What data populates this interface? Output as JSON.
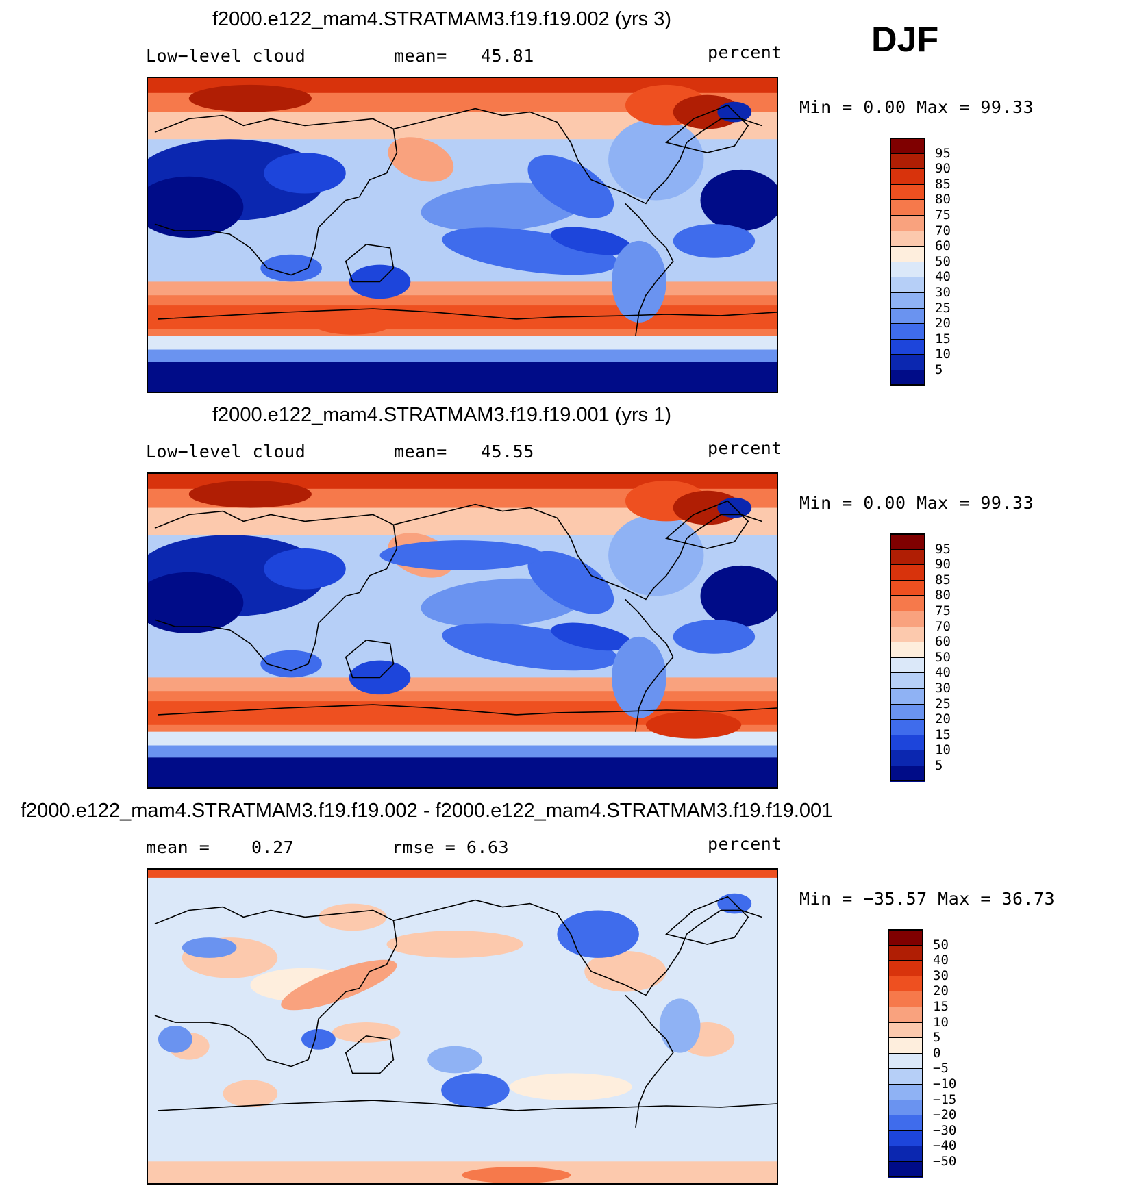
{
  "season": "DJF",
  "panels": [
    {
      "title": "f2000.e122_mam4.STRATMAM3.f19.f19.002 (yrs 3)",
      "left_label": "Low−level cloud",
      "mean_label": "mean=",
      "mean_value": "45.81",
      "units": "percent",
      "minmax": "Min =    0.00 Max =   99.33",
      "colorbar_labels": [
        "95",
        "90",
        "85",
        "80",
        "75",
        "70",
        "60",
        "50",
        "40",
        "30",
        "25",
        "20",
        "15",
        "10",
        "5"
      ]
    },
    {
      "title": "f2000.e122_mam4.STRATMAM3.f19.f19.001 (yrs 1)",
      "left_label": "Low−level cloud",
      "mean_label": "mean=",
      "mean_value": "45.55",
      "units": "percent",
      "minmax": "Min =    0.00 Max =   99.33",
      "colorbar_labels": [
        "95",
        "90",
        "85",
        "80",
        "75",
        "70",
        "60",
        "50",
        "40",
        "30",
        "25",
        "20",
        "15",
        "10",
        "5"
      ]
    },
    {
      "title": "f2000.e122_mam4.STRATMAM3.f19.f19.002 - f2000.e122_mam4.STRATMAM3.f19.f19.001",
      "left_label": "mean =",
      "mean_label": "0.27",
      "mean_value": "rmse =     6.63",
      "units": "percent",
      "minmax": "Min = −35.57 Max =   36.73",
      "colorbar_labels": [
        "50",
        "40",
        "30",
        "20",
        "15",
        "10",
        "5",
        "0",
        "−5",
        "−10",
        "−15",
        "−20",
        "−30",
        "−40",
        "−50"
      ]
    }
  ],
  "colors": {
    "scale": [
      "#7f0000",
      "#b01e04",
      "#d8330c",
      "#ee5020",
      "#f6794b",
      "#f9a27e",
      "#fcc9ad",
      "#feeedd",
      "#dbe8f9",
      "#b6cff7",
      "#8fb2f4",
      "#6a93f0",
      "#3f6cec",
      "#1d45db",
      "#0b27b0",
      "#000c88"
    ],
    "coast": "#000000"
  }
}
